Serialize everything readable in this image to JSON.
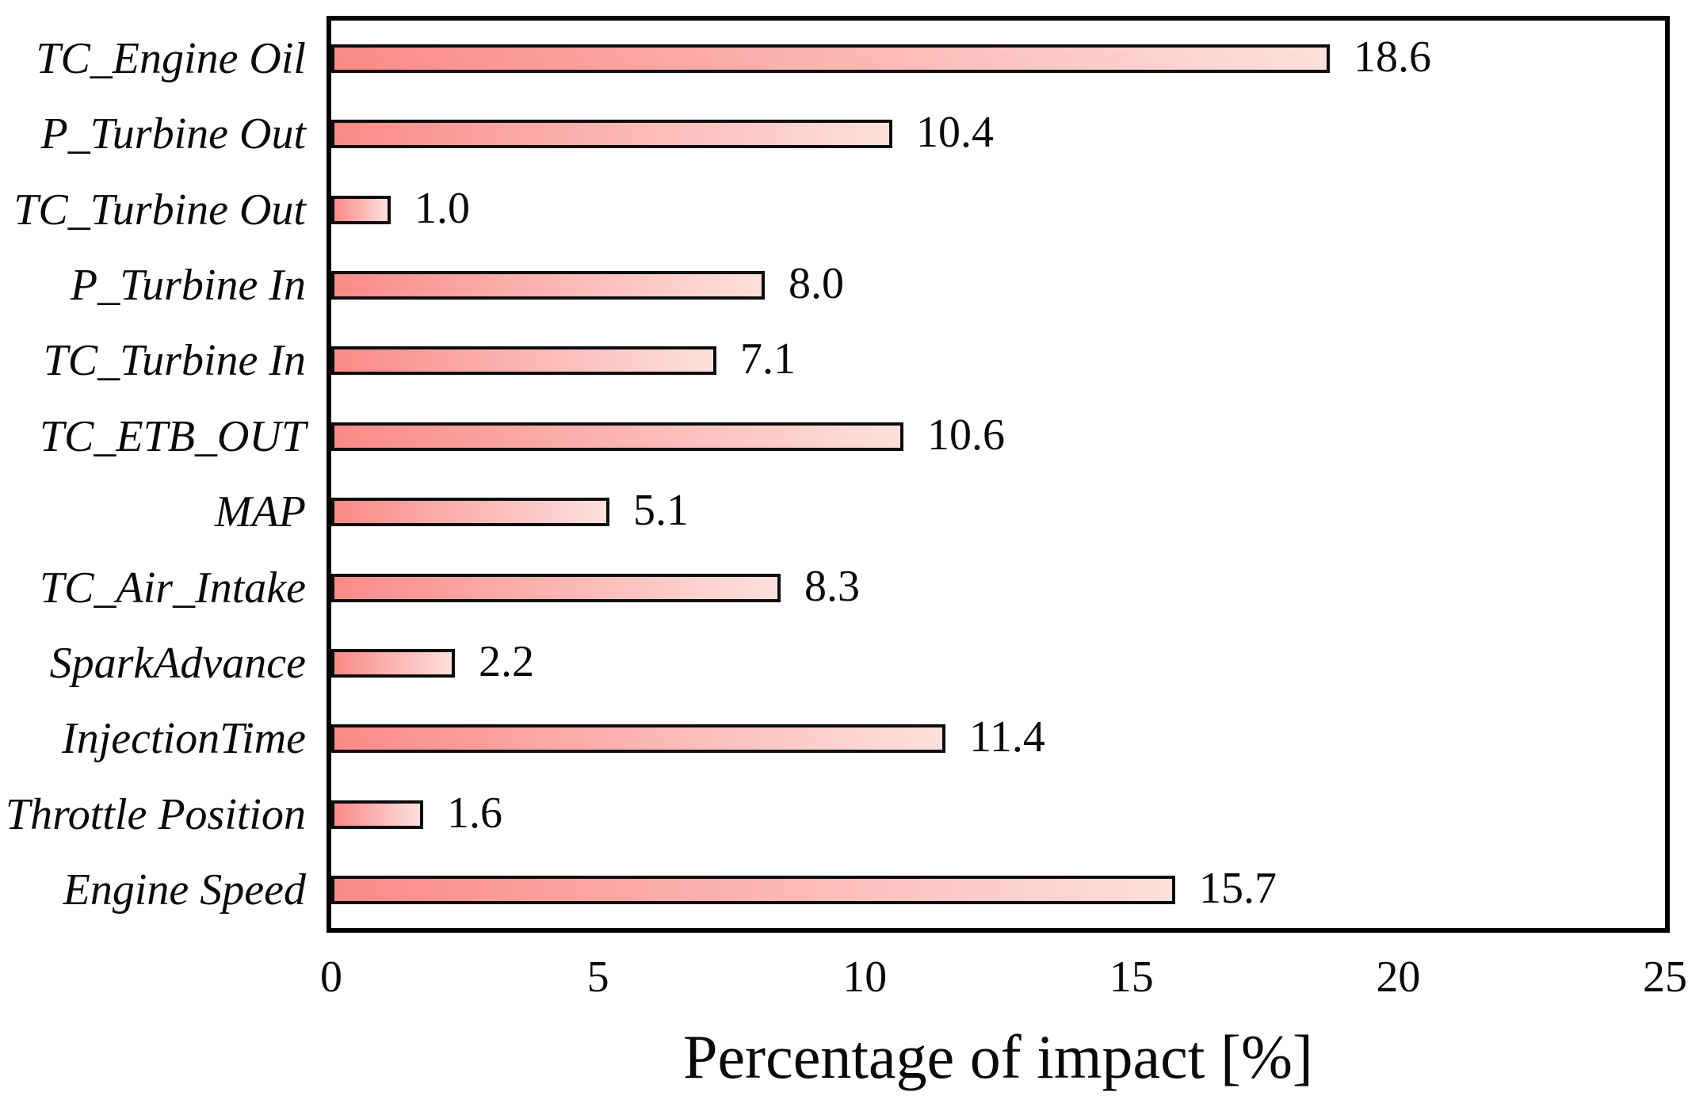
{
  "chart_data": {
    "type": "bar",
    "orientation": "horizontal",
    "title": "",
    "xlabel": "Percentage of impact [%]",
    "ylabel": "",
    "xlim": [
      0,
      25
    ],
    "xticks": [
      "0",
      "5",
      "10",
      "15",
      "20",
      "25"
    ],
    "xtick_values": [
      0,
      5,
      10,
      15,
      20,
      25
    ],
    "grid": false,
    "legend": "none",
    "categories_top_to_bottom": [
      "TC_Engine Oil",
      "P_Turbine Out",
      "TC_Turbine Out",
      "P_Turbine In",
      "TC_Turbine In",
      "TC_ETB_OUT",
      "MAP",
      "TC_Air_Intake",
      "SparkAdvance",
      "InjectionTime",
      "Throttle Position",
      "Engine Speed"
    ],
    "values": [
      18.6,
      10.4,
      1.0,
      8.0,
      7.1,
      10.6,
      5.1,
      8.3,
      2.2,
      11.4,
      1.6,
      15.7
    ],
    "value_labels": [
      "18.6",
      "10.4",
      "1.0",
      "8.0",
      "7.1",
      "10.6",
      "5.1",
      "8.3",
      "2.2",
      "11.4",
      "1.6",
      "15.7"
    ],
    "colors": {
      "bar_gradient_left": "#fa8a87",
      "bar_gradient_right": "#fde0dd",
      "bar_border": "#0d0d0d",
      "plot_border": "#000000",
      "background": "#ffffff",
      "text": "#0a0a0a"
    }
  }
}
